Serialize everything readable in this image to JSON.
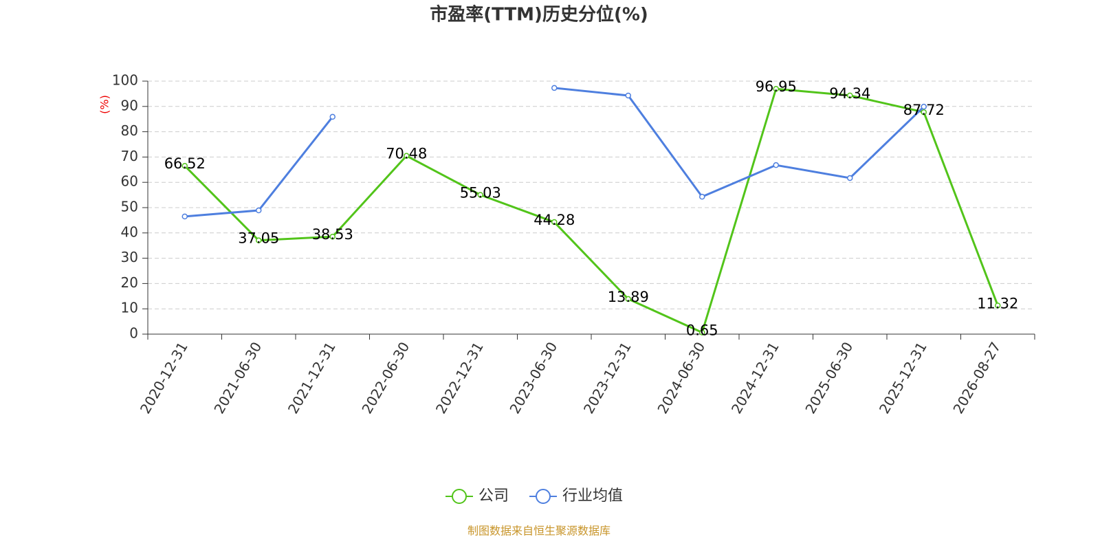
{
  "chart_data": {
    "type": "line",
    "title": "市盈率(TTM)历史分位(%)",
    "y_label": "(%)",
    "categories": [
      "2020-12-31",
      "2021-06-30",
      "2021-12-31",
      "2022-06-30",
      "2022-12-31",
      "2023-06-30",
      "2023-12-31",
      "2024-06-30",
      "2024-12-31",
      "2025-06-30",
      "2025-12-31",
      "2026-08-27"
    ],
    "series": [
      {
        "name": "公司",
        "color": "#52c41a",
        "values": [
          66.52,
          37.05,
          38.53,
          70.48,
          55.03,
          44.28,
          13.89,
          0.65,
          96.95,
          94.34,
          87.72,
          11.32
        ],
        "show_labels": true
      },
      {
        "name": "行业均值",
        "color": "#4e7fdf",
        "values": [
          46.5,
          48.9,
          85.9,
          null,
          null,
          97.3,
          94.3,
          54.3,
          66.8,
          61.7,
          89.9,
          null
        ],
        "show_labels": false
      }
    ],
    "ylim": [
      0,
      100
    ],
    "yticks": [
      0,
      10,
      20,
      30,
      40,
      50,
      60,
      70,
      80,
      90,
      100
    ],
    "grid": true,
    "source": "制图数据来自恒生聚源数据库"
  }
}
